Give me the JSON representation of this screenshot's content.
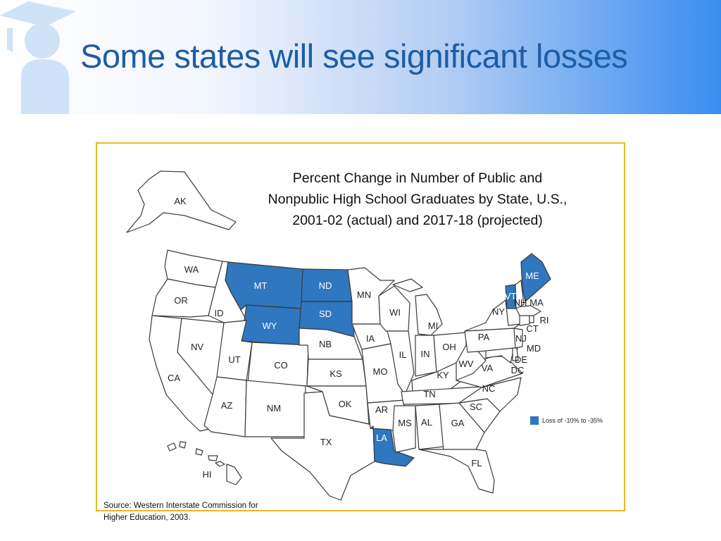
{
  "slide": {
    "title": "Some states will see significant losses",
    "accent_color": "#1d5da6",
    "frame_color": "#f2b526",
    "logo_icon": "graduate-icon"
  },
  "map": {
    "title_lines": [
      "Percent Change in Number of Public and",
      "Nonpublic High School Graduates by State, U.S.,",
      "2001-02 (actual) and 2017-18 (projected)"
    ],
    "loss_color": "#2f77bf",
    "other_color": "#ffffff",
    "legend_label": "Loss of -10% to -35%",
    "states": {
      "AK": "AK",
      "HI": "HI",
      "WA": "WA",
      "OR": "OR",
      "CA": "CA",
      "NV": "NV",
      "ID": "ID",
      "MT": "MT",
      "WY": "WY",
      "UT": "UT",
      "CO": "CO",
      "AZ": "AZ",
      "NM": "NM",
      "ND": "ND",
      "SD": "SD",
      "NB": "NB",
      "KS": "KS",
      "OK": "OK",
      "TX": "TX",
      "MN": "MN",
      "IA": "IA",
      "MO": "MO",
      "AR": "AR",
      "LA": "LA",
      "WI": "WI",
      "IL": "IL",
      "MS": "MS",
      "MI": "MI",
      "IN": "IN",
      "KY": "KY",
      "TN": "TN",
      "AL": "AL",
      "OH": "OH",
      "GA": "GA",
      "FL": "FL",
      "SC": "SC",
      "NC": "NC",
      "VA": "VA",
      "WV": "WV",
      "PA": "PA",
      "NY": "NY",
      "MD": "MD",
      "DE": "DE",
      "DC": "DC",
      "NJ": "NJ",
      "CT": "CT",
      "RI": "RI",
      "MA": "MA",
      "VT": "VT",
      "NH": "NH",
      "ME": "ME"
    },
    "loss_states": [
      "MT",
      "WY",
      "ND",
      "SD",
      "LA",
      "VT",
      "ME"
    ]
  },
  "source": {
    "lines": [
      "Source: Western Interstate Commission for",
      "Higher Education, 2003."
    ]
  }
}
